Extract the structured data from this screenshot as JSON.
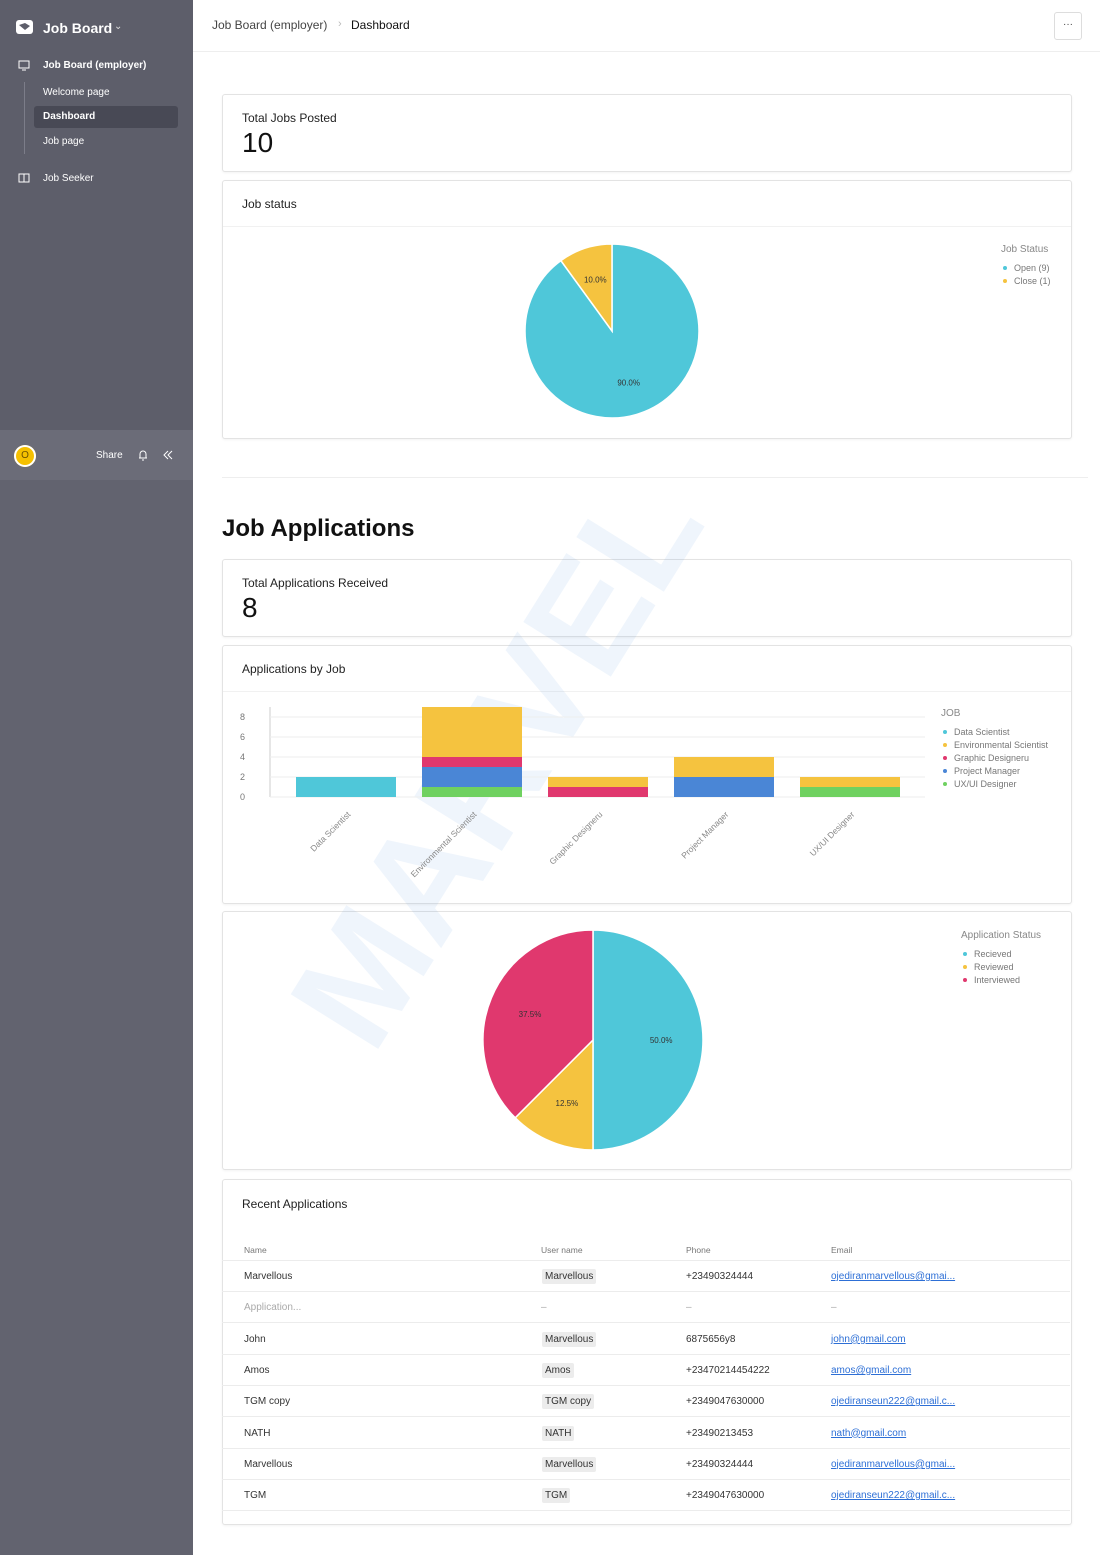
{
  "sidebar": {
    "workspace": "Job Board",
    "nav": [
      {
        "label": "Job Board (employer)",
        "children": [
          "Welcome page",
          "Dashboard",
          "Job page"
        ]
      },
      {
        "label": "Job Seeker"
      }
    ],
    "avatar": "O",
    "share": "Share"
  },
  "breadcrumb": [
    "Job Board (employer)",
    "Dashboard"
  ],
  "menu": "···",
  "cards": [
    {
      "label": "Total Jobs Posted",
      "value": 10
    },
    {
      "label": "Total Applications Received",
      "value": 8
    }
  ],
  "section_title": "Job Applications",
  "watermark": "MARVEL",
  "chart_data": [
    {
      "type": "pie",
      "title": "Job status",
      "legend_title": "Job Status",
      "legend": "top-right",
      "labels": [
        "Open (9)",
        "Close (1)"
      ],
      "values": [
        90,
        10
      ],
      "value_labels": [
        "90.0%",
        "10.0%"
      ],
      "colors": [
        "#4fc7d9",
        "#f5c33f"
      ]
    },
    {
      "type": "bar",
      "title": "Applications by Job",
      "legend_title": "JOB",
      "legend": "top-right",
      "stacked": true,
      "grid": true,
      "categories": [
        "Data Scientist",
        "Environmental Scientist",
        "Graphic Designeru",
        "Project Manager",
        "UX/UI Designer"
      ],
      "series": [
        {
          "name": "Data Scientist",
          "color": "#4fc7d9",
          "values": [
            2,
            0,
            0,
            0,
            0
          ]
        },
        {
          "name": "Environmental Scientist",
          "color": "#f5c33f",
          "values": [
            0,
            5,
            1,
            2,
            1
          ]
        },
        {
          "name": "Graphic Designeru",
          "color": "#e0386e",
          "values": [
            0,
            1,
            1,
            0,
            0
          ]
        },
        {
          "name": "Project Manager",
          "color": "#4a86d6",
          "values": [
            0,
            2,
            0,
            2,
            0
          ]
        },
        {
          "name": "UX/UI Designer",
          "color": "#6fd160",
          "values": [
            0,
            1,
            0,
            0,
            1
          ]
        }
      ],
      "ylim": [
        0,
        9
      ],
      "yticks": [
        0,
        2,
        4,
        6,
        8
      ]
    },
    {
      "type": "pie",
      "legend_title": "Application Status",
      "legend": "top-right",
      "labels": [
        "Recieved",
        "Reviewed",
        "Interviewed"
      ],
      "values": [
        50,
        12.5,
        37.5
      ],
      "value_labels": [
        "50.0%",
        "12.5%",
        "37.5%"
      ],
      "colors": [
        "#4fc7d9",
        "#f5c33f",
        "#e0386e"
      ]
    }
  ],
  "table": {
    "title": "Recent Applications",
    "columns": [
      "Name",
      "User name",
      "Phone",
      "Email"
    ],
    "rows": [
      [
        "Marvellous",
        "Marvellous",
        "+23490324444",
        "ojediranmarvellous@gmai..."
      ],
      [
        "Application...",
        "–",
        "–",
        "–"
      ],
      [
        "John",
        "Marvellous",
        "6875656y8",
        "john@gmail.com"
      ],
      [
        "Amos",
        "Amos",
        "+23470214454222",
        "amos@gmail.com"
      ],
      [
        "TGM copy",
        "TGM copy",
        "+2349047630000",
        "ojediranseun222@gmail.c..."
      ],
      [
        "NATH",
        "NATH",
        "+23490213453",
        "nath@gmail.com"
      ],
      [
        "Marvellous",
        "Marvellous",
        "+23490324444",
        "ojediranmarvellous@gmai..."
      ],
      [
        "TGM",
        "TGM",
        "+2349047630000",
        "ojediranseun222@gmail.c..."
      ]
    ]
  }
}
